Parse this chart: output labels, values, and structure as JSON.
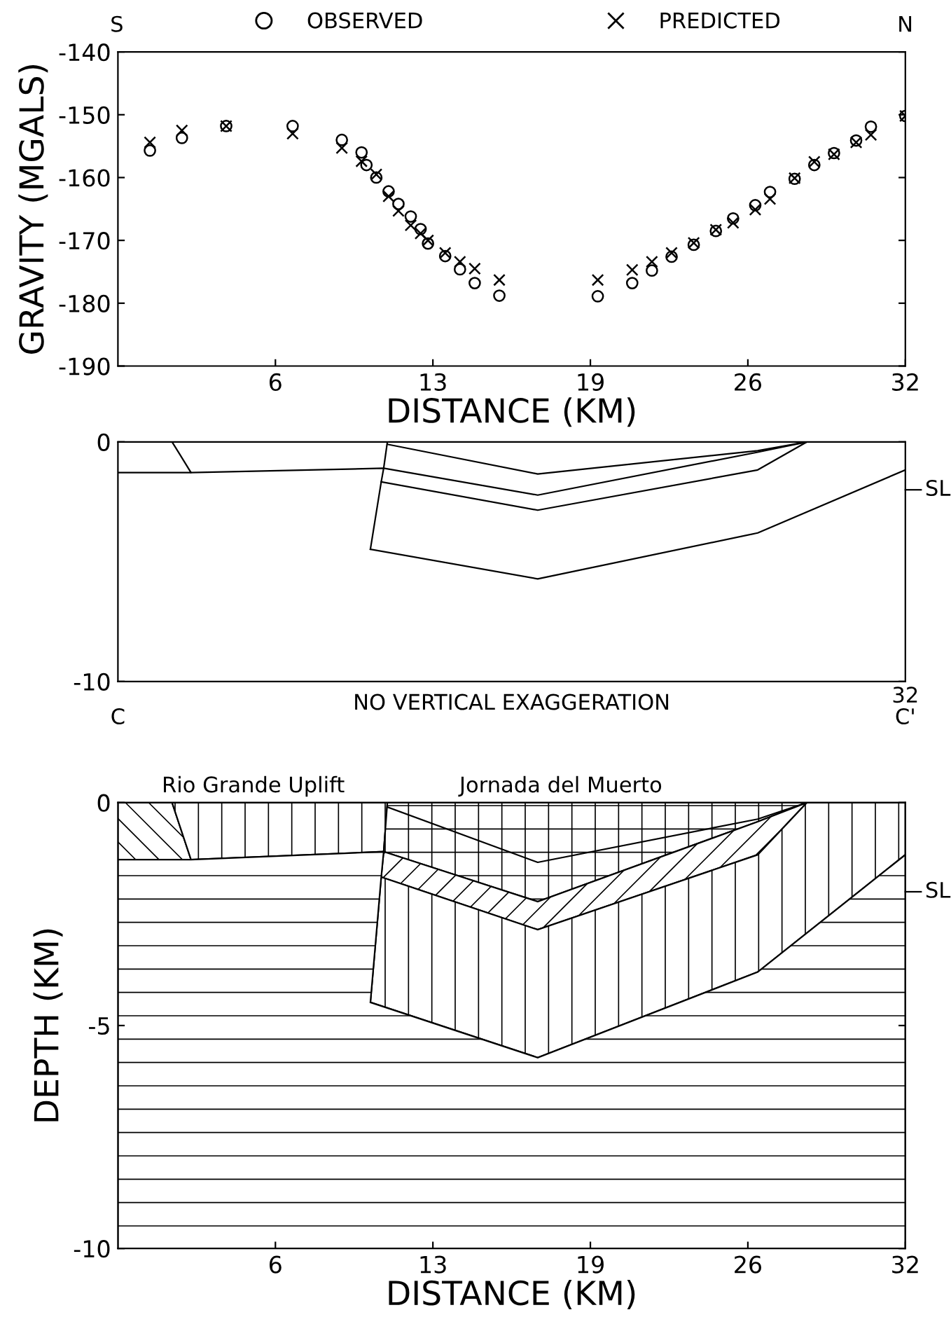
{
  "chart_data": [
    {
      "type": "scatter",
      "xlabel": "DISTANCE (KM)",
      "ylabel": "GRAVITY (MGALS)",
      "annotations": [
        "S",
        "N"
      ],
      "legend": "top",
      "grid": false,
      "xlim": [
        0,
        32
      ],
      "xticks": [
        {
          "value": 6.4,
          "label": "6"
        },
        {
          "value": 12.8,
          "label": "13"
        },
        {
          "value": 19.2,
          "label": "19"
        },
        {
          "value": 25.6,
          "label": "26"
        },
        {
          "value": 32,
          "label": "32"
        }
      ],
      "ylim": [
        -190,
        -140
      ],
      "yticks": [
        -190,
        -180,
        -170,
        -160,
        -150,
        -140
      ],
      "series": [
        {
          "name": "OBSERVED",
          "color": "#000000",
          "marker": "circle",
          "x": [
            1.3,
            2.6,
            4.4,
            7.1,
            9.1,
            9.9,
            10.1,
            10.5,
            11.0,
            11.4,
            11.9,
            12.3,
            12.6,
            13.3,
            13.9,
            14.5,
            15.5,
            19.5,
            20.9,
            21.7,
            22.5,
            23.4,
            24.3,
            25.0,
            25.9,
            26.5,
            27.5,
            28.3,
            29.1,
            30.0,
            30.6,
            32.0
          ],
          "values": [
            -155.7,
            -153.7,
            -151.8,
            -151.8,
            -154.0,
            -156.0,
            -158.0,
            -160.0,
            -162.2,
            -164.2,
            -166.2,
            -168.2,
            -170.5,
            -172.5,
            -174.6,
            -176.8,
            -178.8,
            -178.9,
            -176.8,
            -174.8,
            -172.6,
            -170.7,
            -168.5,
            -166.5,
            -164.4,
            -162.3,
            -160.2,
            -158.0,
            -156.1,
            -154.1,
            -151.9,
            -150.2
          ]
        },
        {
          "name": "PREDICTED",
          "color": "#000000",
          "marker": "cross",
          "x": [
            1.3,
            2.6,
            4.4,
            7.1,
            9.1,
            9.9,
            10.5,
            11.0,
            11.4,
            11.9,
            12.3,
            12.6,
            13.3,
            13.9,
            14.5,
            15.5,
            19.5,
            20.9,
            21.7,
            22.5,
            23.4,
            24.3,
            25.0,
            25.9,
            26.5,
            27.5,
            28.3,
            29.1,
            30.0,
            30.6,
            32.0
          ],
          "values": [
            -154.4,
            -152.5,
            -151.8,
            -153.0,
            -155.3,
            -157.4,
            -159.5,
            -163.0,
            -165.3,
            -167.6,
            -168.9,
            -170.0,
            -172.0,
            -173.4,
            -174.5,
            -176.3,
            -176.3,
            -174.7,
            -173.4,
            -172.0,
            -170.4,
            -168.3,
            -167.2,
            -165.1,
            -163.4,
            -160.1,
            -157.5,
            -156.3,
            -154.4,
            -153.2,
            -150.2
          ]
        }
      ]
    },
    {
      "type": "line",
      "annotations": [
        "NO VERTICAL EXAGGERATION",
        "C",
        "C'",
        "32"
      ],
      "grid": false,
      "tick_labels": "y",
      "xlim": [
        0,
        32
      ],
      "ylim": [
        -10,
        0
      ],
      "yticks": [
        -10,
        0
      ],
      "ref_lines": [
        {
          "axis": "y",
          "value": -2,
          "label": "SL"
        }
      ],
      "series": [
        {
          "color": "#000000",
          "x": [
            0,
            2.97,
            2.2
          ],
          "values": [
            -1.28,
            -1.28,
            0
          ]
        },
        {
          "color": "#000000",
          "x": [
            2.97,
            10.8,
            10.7,
            10.26
          ],
          "values": [
            -1.28,
            -1.1,
            -1.67,
            -4.48
          ]
        },
        {
          "color": "#000000",
          "x": [
            10.95,
            17.06,
            26.0,
            28.0
          ],
          "values": [
            -0.1,
            -1.34,
            -0.37,
            0
          ]
        },
        {
          "color": "#000000",
          "x": [
            10.95,
            10.8,
            17.06,
            26.0,
            28.0
          ],
          "values": [
            0,
            -1.1,
            -2.22,
            -0.43,
            0
          ]
        },
        {
          "color": "#000000",
          "x": [
            10.7,
            17.06,
            26.0,
            28.0
          ],
          "values": [
            -1.67,
            -2.85,
            -1.17,
            0
          ]
        },
        {
          "color": "#000000",
          "x": [
            10.26,
            17.06,
            26.0,
            32.0
          ],
          "values": [
            -4.48,
            -5.72,
            -3.8,
            -1.17
          ]
        }
      ]
    },
    {
      "type": "area",
      "xlabel": "DISTANCE (KM)",
      "ylabel": "DEPTH (KM)",
      "annotations": [
        {
          "text": "Rio Grande Uplift",
          "x": 5.5,
          "y": 0
        },
        {
          "text": "Jornada del Muerto",
          "x": 18,
          "y": 0
        }
      ],
      "grid": false,
      "xlim": [
        0,
        32
      ],
      "xticks": [
        {
          "value": 6.4,
          "label": "6"
        },
        {
          "value": 12.8,
          "label": "13"
        },
        {
          "value": 19.2,
          "label": "19"
        },
        {
          "value": 25.6,
          "label": "26"
        },
        {
          "value": 32,
          "label": "32"
        }
      ],
      "ylim": [
        -10,
        0
      ],
      "yticks": [
        -10,
        -5,
        0
      ],
      "ref_lines": [
        {
          "axis": "y",
          "value": -2,
          "label": "SL"
        }
      ],
      "series": [
        {
          "color": "#000000",
          "x": [
            0,
            2.2,
            2.97,
            0
          ],
          "values": [
            0,
            0,
            -1.28,
            -1.28
          ]
        },
        {
          "color": "#000000",
          "x": [
            2.2,
            10.95,
            10.8,
            2.97
          ],
          "values": [
            0,
            0,
            -1.1,
            -1.28
          ]
        },
        {
          "color": "#000000",
          "x": [
            10.95,
            28.0,
            26.0,
            17.06,
            10.8
          ],
          "values": [
            0,
            0,
            -0.43,
            -2.22,
            -1.1
          ]
        },
        {
          "color": "#000000",
          "x": [
            10.8,
            17.06,
            26.0,
            28.0,
            26.0,
            17.06,
            10.7
          ],
          "values": [
            -1.1,
            -2.22,
            -0.43,
            0,
            -1.17,
            -2.85,
            -1.67
          ]
        },
        {
          "color": "#000000",
          "x": [
            10.7,
            17.06,
            26.0,
            28.0,
            32.0,
            32.0,
            26.0,
            17.06,
            10.26
          ],
          "values": [
            -1.67,
            -2.85,
            -1.17,
            0,
            0,
            -1.17,
            -3.8,
            -5.72,
            -4.48
          ]
        },
        {
          "color": "#000000",
          "x": [
            0,
            2.97,
            10.8,
            10.7,
            10.26,
            17.06,
            26.0,
            32.0,
            32.0,
            0
          ],
          "values": [
            -1.28,
            -1.28,
            -1.1,
            -1.67,
            -4.48,
            -5.72,
            -3.8,
            -1.17,
            -10,
            -10
          ]
        },
        {
          "type": "line",
          "color": "#000000",
          "x": [
            10.95,
            17.06,
            26.0,
            28.0
          ],
          "values": [
            -0.1,
            -1.34,
            -0.37,
            0
          ]
        }
      ]
    }
  ]
}
